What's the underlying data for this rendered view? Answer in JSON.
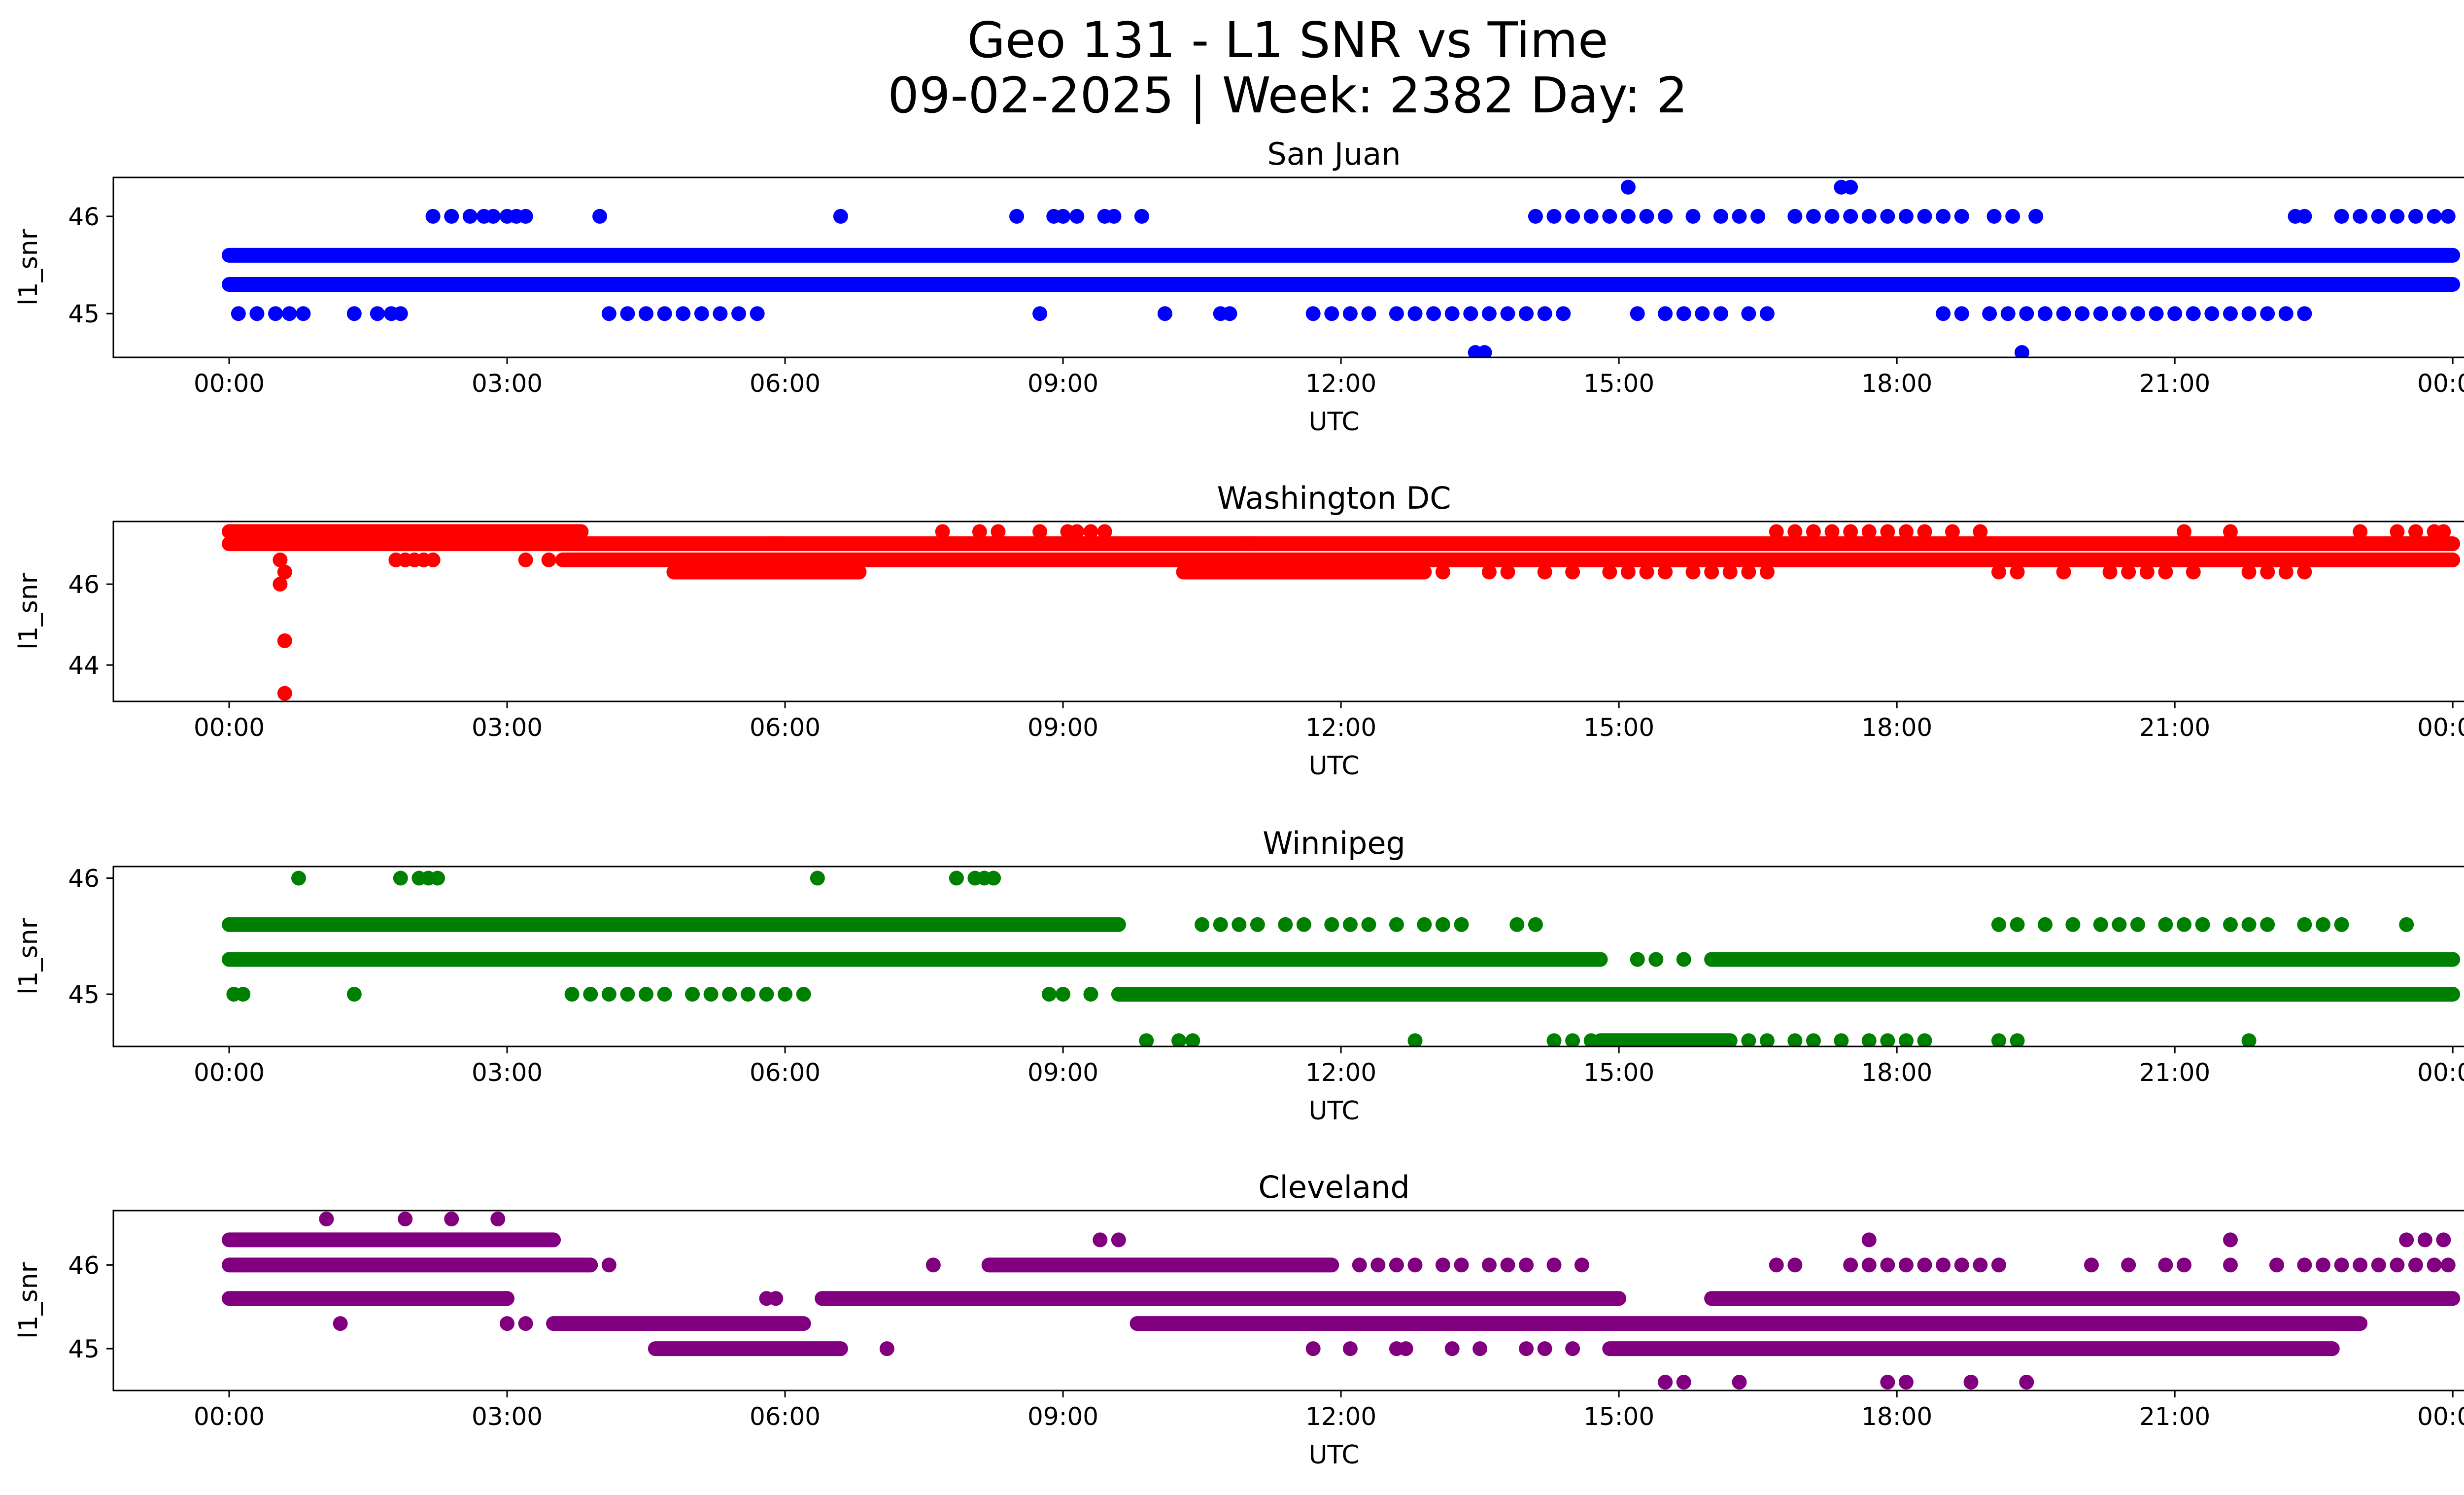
{
  "figure": {
    "title_line1": "Geo 131 - L1 SNR vs Time",
    "title_line2": "09-02-2025 | Week: 2382 Day: 2"
  },
  "chart_data": [
    {
      "type": "scatter",
      "title": "San Juan",
      "xlabel": "UTC",
      "ylabel": "l1_snr",
      "color": "#0000ff",
      "xlim": [
        -1.25,
        25.1
      ],
      "ylim": [
        44.55,
        46.4
      ],
      "x_ticks": [
        "00:00",
        "03:00",
        "06:00",
        "09:00",
        "12:00",
        "15:00",
        "18:00",
        "21:00",
        "00:00"
      ],
      "x_tick_hours": [
        0,
        3,
        6,
        9,
        12,
        15,
        18,
        21,
        24
      ],
      "y_ticks": [
        45,
        46
      ],
      "bands": [
        {
          "y": 45.6,
          "segments": [
            [
              0,
              24
            ]
          ]
        },
        {
          "y": 45.3,
          "segments": [
            [
              0,
              24
            ]
          ]
        }
      ],
      "points": [
        {
          "y": 46.0,
          "x": [
            2.2,
            2.4,
            2.6,
            2.75,
            2.85,
            3.0,
            3.1,
            3.2,
            4.0,
            6.6,
            8.5,
            8.9,
            9.0,
            9.15,
            9.45,
            9.55,
            9.85,
            14.1,
            14.3,
            14.5,
            14.7,
            14.9,
            15.1,
            15.3,
            15.5,
            15.8,
            16.1,
            16.3,
            16.5,
            16.9,
            17.1,
            17.3,
            17.5,
            17.7,
            17.9,
            18.1,
            18.3,
            18.5,
            18.7,
            19.05,
            19.25,
            19.5,
            22.3,
            22.4,
            22.8,
            23.0,
            23.2,
            23.4,
            23.6,
            23.8,
            23.95
          ]
        },
        {
          "y": 45.0,
          "x": [
            0.1,
            0.3,
            0.5,
            0.65,
            0.8,
            1.35,
            1.6,
            1.75,
            1.85,
            4.1,
            4.3,
            4.5,
            4.7,
            4.9,
            5.1,
            5.3,
            5.5,
            5.7,
            8.75,
            10.1,
            10.7,
            10.8,
            11.7,
            11.9,
            12.1,
            12.3,
            12.6,
            12.8,
            13.0,
            13.2,
            13.4,
            13.6,
            13.8,
            14.0,
            14.2,
            14.4,
            15.2,
            15.5,
            15.7,
            15.9,
            16.1,
            16.4,
            16.6,
            18.5,
            18.7,
            19.0,
            19.2,
            19.4,
            19.6,
            19.8,
            20.0,
            20.2,
            20.4,
            20.6,
            20.8,
            21.0,
            21.2,
            21.4,
            21.6,
            21.8,
            22.0,
            22.2,
            22.4
          ]
        },
        {
          "y": 46.3,
          "x": [
            15.1,
            17.4,
            17.5
          ]
        },
        {
          "y": 44.6,
          "x": [
            13.45,
            13.55,
            19.35
          ]
        }
      ]
    },
    {
      "type": "scatter",
      "title": "Washington DC",
      "xlabel": "UTC",
      "ylabel": "l1_snr",
      "color": "#ff0000",
      "xlim": [
        -1.25,
        25.1
      ],
      "ylim": [
        43.1,
        47.55
      ],
      "x_ticks": [
        "00:00",
        "03:00",
        "06:00",
        "09:00",
        "12:00",
        "15:00",
        "18:00",
        "21:00",
        "00:00"
      ],
      "x_tick_hours": [
        0,
        3,
        6,
        9,
        12,
        15,
        18,
        21,
        24
      ],
      "y_ticks": [
        44,
        46
      ],
      "bands": [
        {
          "y": 47.3,
          "segments": [
            [
              0,
              3.8
            ]
          ]
        },
        {
          "y": 47.0,
          "segments": [
            [
              0,
              24
            ]
          ]
        },
        {
          "y": 46.6,
          "segments": [
            [
              3.6,
              24
            ]
          ]
        },
        {
          "y": 46.3,
          "segments": [
            [
              4.8,
              6.8
            ],
            [
              10.3,
              12.9
            ]
          ]
        }
      ],
      "points": [
        {
          "y": 46.6,
          "x": [
            0.55,
            1.8,
            1.9,
            2.0,
            2.1,
            2.2,
            3.2,
            3.45
          ]
        },
        {
          "y": 46.3,
          "x": [
            0.6,
            13.1,
            13.6,
            13.8,
            14.2,
            14.5,
            14.9,
            15.1,
            15.3,
            15.5,
            15.8,
            16.0,
            16.2,
            16.4,
            16.6,
            19.1,
            19.3,
            19.8,
            20.3,
            20.5,
            20.7,
            20.9,
            21.2,
            21.8,
            22.0,
            22.2,
            22.4
          ]
        },
        {
          "y": 46.0,
          "x": [
            0.55
          ]
        },
        {
          "y": 44.6,
          "x": [
            0.6
          ]
        },
        {
          "y": 43.3,
          "x": [
            0.6
          ]
        },
        {
          "y": 47.0,
          "x": [
            5.9,
            11.0
          ]
        },
        {
          "y": 47.3,
          "x": [
            7.7,
            8.1,
            8.3,
            8.75,
            9.05,
            9.15,
            9.3,
            9.45,
            16.7,
            16.9,
            17.1,
            17.3,
            17.5,
            17.7,
            17.9,
            18.1,
            18.3,
            18.6,
            18.9,
            21.1,
            21.6,
            23.0,
            23.4,
            23.6,
            23.8,
            23.9
          ]
        }
      ]
    },
    {
      "type": "scatter",
      "title": "Winnipeg",
      "xlabel": "UTC",
      "ylabel": "l1_snr",
      "color": "#008000",
      "xlim": [
        -1.25,
        25.1
      ],
      "ylim": [
        44.55,
        46.1
      ],
      "x_ticks": [
        "00:00",
        "03:00",
        "06:00",
        "09:00",
        "12:00",
        "15:00",
        "18:00",
        "21:00",
        "00:00"
      ],
      "x_tick_hours": [
        0,
        3,
        6,
        9,
        12,
        15,
        18,
        21,
        24
      ],
      "y_ticks": [
        45,
        46
      ],
      "bands": [
        {
          "y": 45.6,
          "segments": [
            [
              0,
              9.6
            ]
          ]
        },
        {
          "y": 45.3,
          "segments": [
            [
              0,
              14.8
            ],
            [
              16.0,
              24
            ]
          ]
        },
        {
          "y": 45.0,
          "segments": [
            [
              9.6,
              24
            ]
          ]
        },
        {
          "y": 44.6,
          "segments": [
            [
              14.8,
              16.2
            ]
          ]
        }
      ],
      "points": [
        {
          "y": 46.0,
          "x": [
            0.75,
            1.85,
            2.05,
            2.15,
            2.25,
            6.35,
            7.85,
            8.05,
            8.15,
            8.25
          ]
        },
        {
          "y": 45.6,
          "x": [
            10.5,
            10.7,
            10.9,
            11.1,
            11.4,
            11.6,
            11.9,
            12.1,
            12.3,
            12.6,
            12.9,
            13.1,
            13.3,
            13.9,
            14.1,
            19.1,
            19.3,
            19.6,
            19.9,
            20.2,
            20.4,
            20.6,
            20.9,
            21.1,
            21.3,
            21.6,
            21.8,
            22.0,
            22.4,
            22.6,
            22.8,
            23.5
          ]
        },
        {
          "y": 45.3,
          "x": [
            15.2,
            15.4,
            15.7
          ]
        },
        {
          "y": 45.0,
          "x": [
            0.05,
            0.15,
            1.35,
            3.7,
            3.9,
            4.1,
            4.3,
            4.5,
            4.7,
            5.0,
            5.2,
            5.4,
            5.6,
            5.8,
            6.0,
            6.2,
            8.85,
            9.0,
            9.3
          ]
        },
        {
          "y": 44.6,
          "x": [
            9.9,
            10.25,
            10.4,
            12.8,
            14.3,
            14.5,
            14.7,
            16.4,
            16.6,
            16.9,
            17.1,
            17.4,
            17.7,
            17.9,
            18.1,
            18.3,
            19.1,
            19.3,
            21.8
          ]
        }
      ]
    },
    {
      "type": "scatter",
      "title": "Cleveland",
      "xlabel": "UTC",
      "ylabel": "l1_snr",
      "color": "#800080",
      "xlim": [
        -1.25,
        25.1
      ],
      "ylim": [
        44.5,
        46.65
      ],
      "x_ticks": [
        "00:00",
        "03:00",
        "06:00",
        "09:00",
        "12:00",
        "15:00",
        "18:00",
        "21:00",
        "00:00"
      ],
      "x_tick_hours": [
        0,
        3,
        6,
        9,
        12,
        15,
        18,
        21,
        24
      ],
      "y_ticks": [
        45,
        46
      ],
      "bands": [
        {
          "y": 46.3,
          "segments": [
            [
              0,
              3.5
            ]
          ]
        },
        {
          "y": 46.0,
          "segments": [
            [
              0,
              3.9
            ],
            [
              8.2,
              11.9
            ]
          ]
        },
        {
          "y": 45.6,
          "segments": [
            [
              0,
              3.0
            ],
            [
              6.4,
              15.0
            ],
            [
              16.0,
              24
            ]
          ]
        },
        {
          "y": 45.3,
          "segments": [
            [
              3.5,
              6.2
            ],
            [
              9.8,
              23.0
            ]
          ]
        },
        {
          "y": 45.0,
          "segments": [
            [
              4.6,
              6.6
            ],
            [
              14.9,
              22.7
            ]
          ]
        }
      ],
      "points": [
        {
          "y": 46.55,
          "x": [
            1.05,
            1.9,
            2.4,
            2.9
          ]
        },
        {
          "y": 46.3,
          "x": [
            9.4,
            9.6,
            17.7,
            21.6,
            23.5,
            23.7,
            23.9
          ]
        },
        {
          "y": 46.0,
          "x": [
            4.1,
            7.6,
            12.2,
            12.4,
            12.6,
            12.8,
            13.1,
            13.3,
            13.6,
            13.8,
            14.0,
            14.3,
            14.6,
            16.7,
            16.9,
            17.5,
            17.7,
            17.9,
            18.1,
            18.3,
            18.5,
            18.7,
            18.9,
            19.1,
            20.1,
            20.5,
            20.9,
            21.1,
            21.6,
            22.1,
            22.4,
            22.6,
            22.8,
            23.0,
            23.2,
            23.4,
            23.6,
            23.8,
            23.95
          ]
        },
        {
          "y": 45.6,
          "x": [
            5.8,
            5.9
          ]
        },
        {
          "y": 45.3,
          "x": [
            1.2,
            3.0,
            3.2
          ]
        },
        {
          "y": 45.0,
          "x": [
            7.1,
            11.7,
            12.1,
            12.6,
            12.7,
            13.2,
            13.5,
            14.0,
            14.2,
            14.5
          ]
        },
        {
          "y": 44.6,
          "x": [
            15.5,
            15.7,
            16.3,
            17.9,
            18.1,
            18.8,
            19.4
          ]
        }
      ]
    }
  ]
}
